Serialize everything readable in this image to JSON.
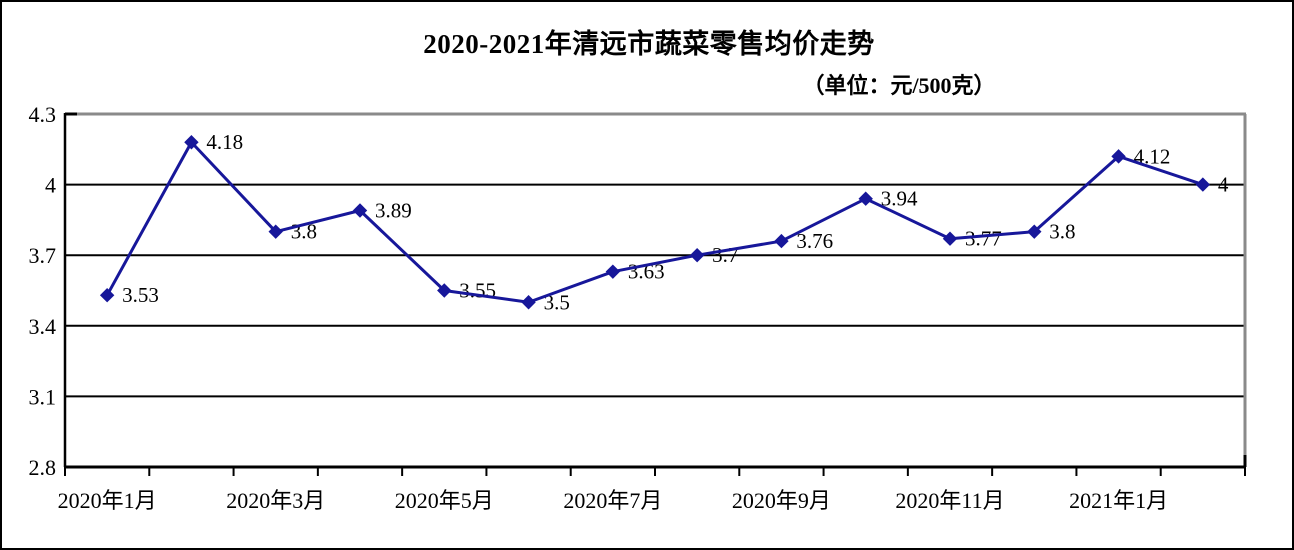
{
  "chart": {
    "title": "2020-2021年清远市蔬菜零售均价走势",
    "subtitle": "（单位：元/500克）"
  },
  "chart_data": {
    "type": "line",
    "title": "2020-2021年清远市蔬菜零售均价走势",
    "unit_label": "（单位：元/500克）",
    "x_tick_labels": [
      "2020年1月",
      "2020年3月",
      "2020年5月",
      "2020年7月",
      "2020年9月",
      "2020年11月",
      "2021年1月"
    ],
    "x_label_every": 2,
    "values": [
      3.53,
      4.18,
      3.8,
      3.89,
      3.55,
      3.5,
      3.63,
      3.7,
      3.76,
      3.94,
      3.77,
      3.8,
      4.12,
      4
    ],
    "point_labels": [
      "3.53",
      "4.18",
      "3.8",
      "3.89",
      "3.55",
      "3.5",
      "3.63",
      "3.7",
      "3.76",
      "3.94",
      "3.77",
      "3.8",
      "4.12",
      "4"
    ],
    "y_tick_labels": [
      "4.3",
      "4",
      "3.7",
      "3.4",
      "3.1",
      "2.8"
    ],
    "ylim": [
      2.8,
      4.3
    ],
    "grid": true,
    "legend": "none",
    "line_color": "#17179A",
    "marker": "diamond",
    "grid_color": "#000000",
    "axis_color": "#000000",
    "plot_border_color": "#8a8a8a",
    "background_color": "#ffffff"
  }
}
